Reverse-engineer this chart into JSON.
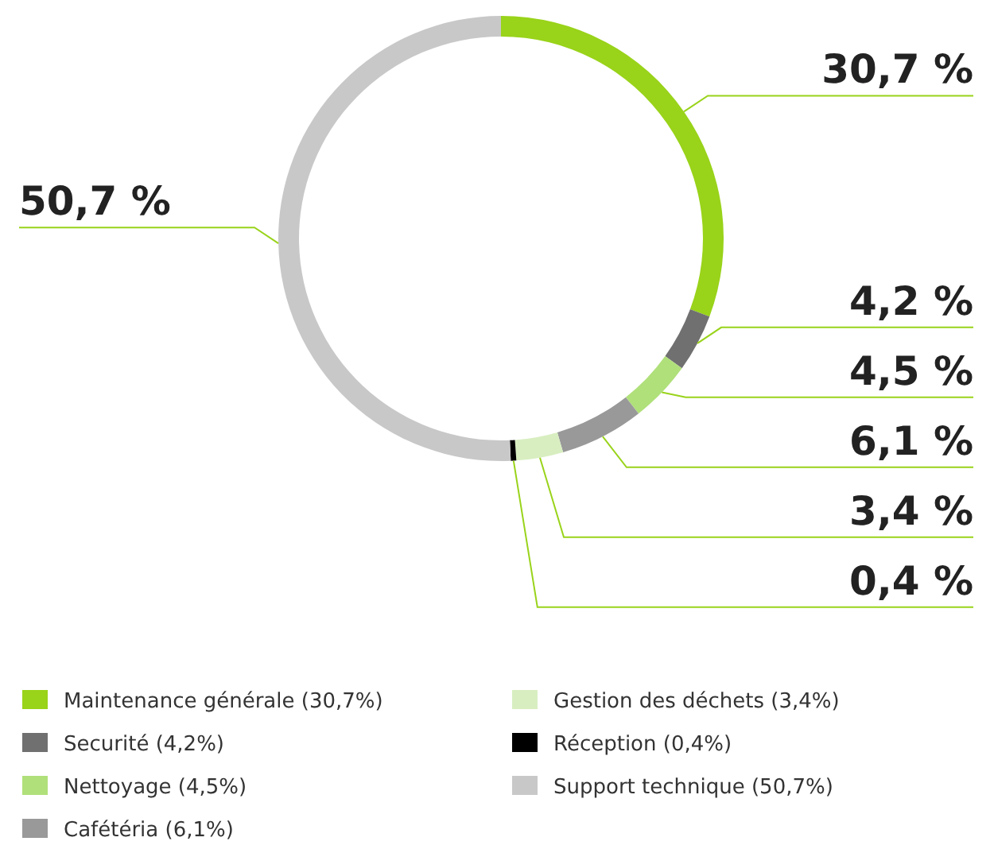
{
  "chart_data": {
    "type": "donut",
    "categories": [
      "Maintenance générale (30,7%)",
      "Securité (4,2%)",
      "Nettoyage (4,5%)",
      "Cafétéria (6,1%)",
      "Gestion des déchets (3,4%)",
      "Réception (0,4%)",
      "Support technique (50,7%)"
    ],
    "values": [
      30.7,
      4.2,
      4.5,
      6.1,
      3.4,
      0.4,
      50.7
    ],
    "colors": [
      "#99d31a",
      "#707070",
      "#b0e07a",
      "#999999",
      "#d8eec0",
      "#000000",
      "#c8c8c8"
    ],
    "value_labels": [
      "30,7 %",
      "4,2 %",
      "4,5 %",
      "6,1 %",
      "3,4 %",
      "0,4 %",
      "50,7 %"
    ],
    "legend": "bottom"
  }
}
